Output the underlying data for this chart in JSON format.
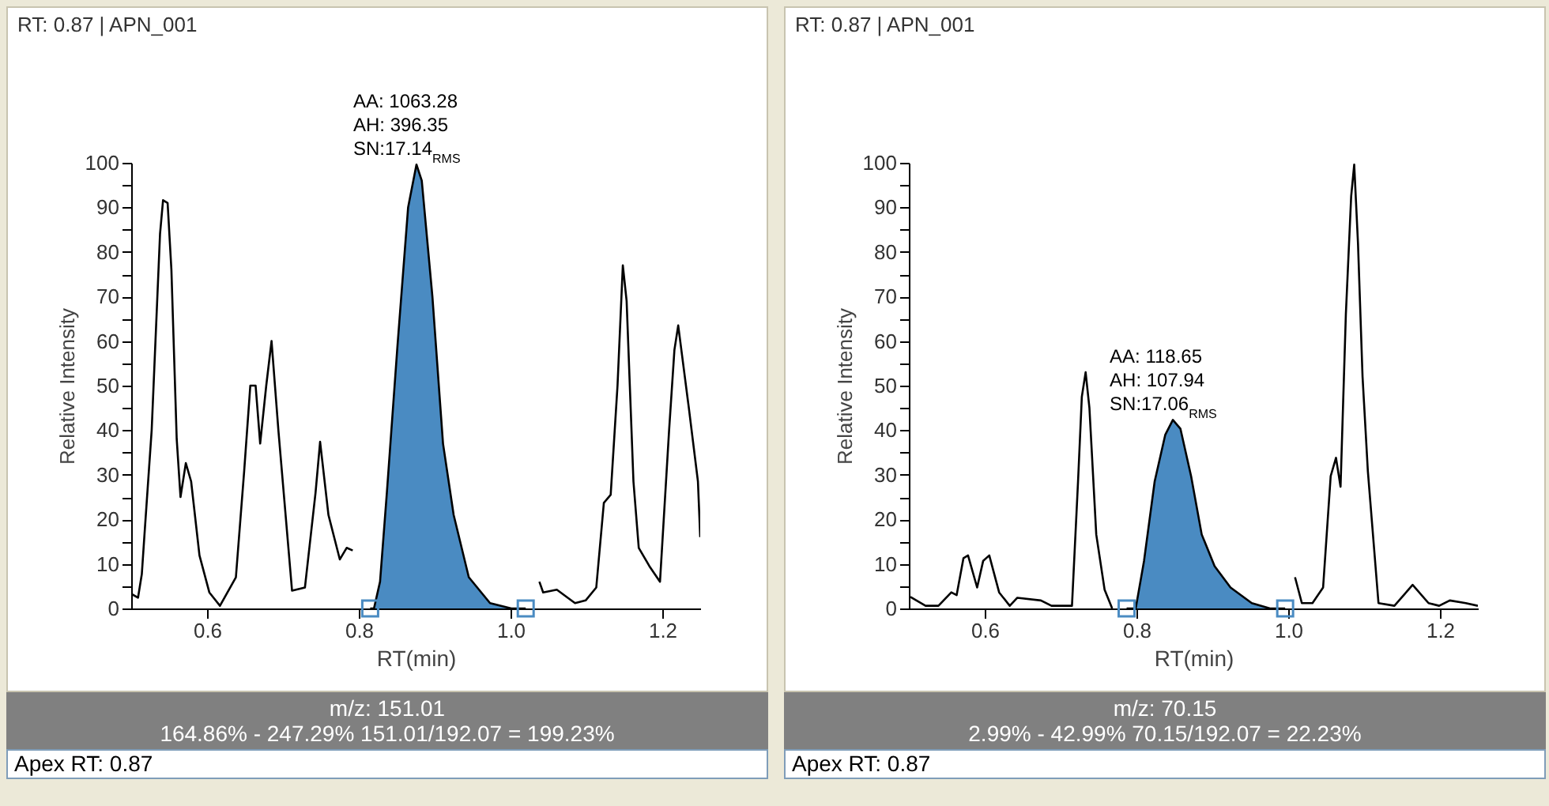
{
  "chart_data": [
    {
      "type": "line",
      "title": "RT: 0.87 | APN_001",
      "xlabel": "RT(min)",
      "ylabel": "Relative Intensity",
      "xlim": [
        0.5,
        1.25
      ],
      "xticks": [
        0.6,
        0.8,
        {
          "value": 1.0,
          "label": "1.0"
        },
        1.2
      ],
      "ylim": [
        0,
        100
      ],
      "yticks": [
        0,
        {
          "value": 5,
          "label": null
        },
        10,
        {
          "value": 15,
          "label": null
        },
        20,
        {
          "value": 25,
          "label": null
        },
        30,
        {
          "value": 35,
          "label": null
        },
        40,
        {
          "value": 45,
          "label": null
        },
        50,
        {
          "value": 55,
          "label": null
        },
        60,
        {
          "value": 65,
          "label": null
        },
        70,
        {
          "value": 75,
          "label": null
        },
        80,
        {
          "value": 85,
          "label": null
        },
        90,
        {
          "value": 95,
          "label": null
        },
        100
      ],
      "series": [
        {
          "type": "line",
          "color": "#000000",
          "x": [
            0.5,
            0.509,
            0.514,
            0.518,
            0.527,
            0.538,
            0.542,
            0.548,
            0.553,
            0.56,
            0.565,
            0.572,
            0.579,
            0.59,
            0.603,
            0.617,
            0.638,
            0.649,
            0.657,
            0.664,
            0.67,
            0.678,
            0.685,
            0.694,
            0.712,
            0.729,
            0.743,
            0.749,
            0.76,
            0.775,
            0.784,
            0.792,
            0.9,
            1.038,
            1.043,
            1.061,
            1.085,
            1.099,
            1.113,
            1.123,
            1.132,
            1.141,
            1.148,
            1.153,
            1.162,
            1.169,
            1.183,
            1.197,
            1.209,
            1.216,
            1.221,
            1.235,
            1.247,
            1.25
          ],
          "values": [
            3.3,
            2.4,
            7.7,
            17.8,
            40,
            84,
            91.6,
            91,
            76,
            38,
            25,
            32.6,
            28.5,
            11.9,
            3.6,
            0.6,
            7,
            31,
            50,
            50,
            37,
            50,
            60,
            40,
            4,
            4.7,
            26,
            37.4,
            21,
            11,
            13.6,
            13,
            null,
            6,
            3.6,
            4.2,
            1.2,
            1.8,
            4.7,
            23.7,
            25.5,
            50,
            77,
            69,
            28.5,
            13.6,
            9.5,
            6,
            40,
            58,
            63.5,
            45,
            28.5,
            16
          ]
        },
        {
          "type": "area",
          "color": "#4a8bc2",
          "x": [
            0.815,
            0.82,
            0.828,
            0.837,
            0.851,
            0.865,
            0.876,
            0.883,
            0.897,
            0.911,
            0.925,
            0.945,
            0.973,
            1.001,
            1.02
          ],
          "values": [
            0,
            0,
            6,
            26,
            59,
            90,
            99.6,
            96,
            70,
            37,
            21,
            7,
            1.2,
            0,
            0
          ]
        },
        {
          "type": "scatter",
          "marker": "square",
          "color": "#4a8bc2",
          "x": [
            0.815,
            1.02
          ],
          "values": [
            0,
            0
          ]
        }
      ],
      "annotations": [
        "AA: 1063.28",
        "AH: 396.35",
        "SN:17.14$_{RMS}$",
        "m/z: 151.01",
        "164.86% - 247.29% 151.01/192.07 = 199.23%",
        "Apex RT: 0.87"
      ]
    },
    {
      "type": "line",
      "title": "RT: 0.87 | APN_001",
      "xlabel": "RT(min)",
      "ylabel": "Relative Intensity",
      "xlim": [
        0.5,
        1.25
      ],
      "xticks": [
        0.6,
        0.8,
        {
          "value": 1.0,
          "label": "1.0"
        },
        1.2
      ],
      "ylim": [
        0,
        100
      ],
      "yticks": [
        0,
        {
          "value": 5,
          "label": null
        },
        10,
        {
          "value": 15,
          "label": null
        },
        20,
        {
          "value": 25,
          "label": null
        },
        30,
        {
          "value": 35,
          "label": null
        },
        40,
        {
          "value": 45,
          "label": null
        },
        50,
        {
          "value": 55,
          "label": null
        },
        60,
        {
          "value": 65,
          "label": null
        },
        70,
        {
          "value": 75,
          "label": null
        },
        80,
        {
          "value": 85,
          "label": null
        },
        90,
        {
          "value": 95,
          "label": null
        },
        100
      ],
      "series": [
        {
          "type": "line",
          "color": "#000000",
          "x": [
            0.502,
            0.522,
            0.539,
            0.556,
            0.563,
            0.572,
            0.578,
            0.59,
            0.598,
            0.606,
            0.619,
            0.633,
            0.643,
            0.674,
            0.688,
            0.715,
            0.723,
            0.728,
            0.733,
            0.738,
            0.747,
            0.758,
            0.768,
            0.9,
            1.009,
            1.018,
            1.032,
            1.046,
            1.056,
            1.063,
            1.069,
            1.076,
            1.083,
            1.087,
            1.092,
            1.098,
            1.105,
            1.119,
            1.14,
            1.164,
            1.185,
            1.199,
            1.213,
            1.234,
            1.25
          ],
          "values": [
            2.6,
            0.6,
            0.6,
            3.6,
            3,
            11.3,
            11.9,
            4.7,
            10.7,
            11.9,
            3.6,
            0.6,
            2.4,
            1.8,
            0.6,
            0.6,
            28.5,
            47.5,
            53,
            45,
            16.6,
            4.2,
            0,
            null,
            7,
            1.2,
            1.2,
            4.7,
            29.7,
            33.8,
            27.3,
            66,
            92.5,
            99.6,
            81.9,
            52,
            30.8,
            1.2,
            0.6,
            5.3,
            1.2,
            0.6,
            1.8,
            1.2,
            0.6
          ]
        },
        {
          "type": "area",
          "color": "#4a8bc2",
          "x": [
            0.787,
            0.799,
            0.81,
            0.824,
            0.838,
            0.848,
            0.858,
            0.872,
            0.886,
            0.903,
            0.924,
            0.952,
            0.976,
            0.996
          ],
          "values": [
            0,
            0,
            10.7,
            28.5,
            39,
            42.3,
            40.3,
            29.7,
            16.6,
            9.5,
            4.7,
            1.2,
            0,
            0
          ]
        },
        {
          "type": "scatter",
          "marker": "square",
          "color": "#4a8bc2",
          "x": [
            0.787,
            0.996
          ],
          "values": [
            0,
            0
          ]
        }
      ],
      "annotations": [
        "AA: 118.65",
        "AH: 107.94",
        "SN:17.06$_{RMS}$",
        "m/z: 70.15",
        "2.99% - 42.99% 70.15/192.07 = 22.23%",
        "Apex RT: 0.87"
      ]
    }
  ]
}
